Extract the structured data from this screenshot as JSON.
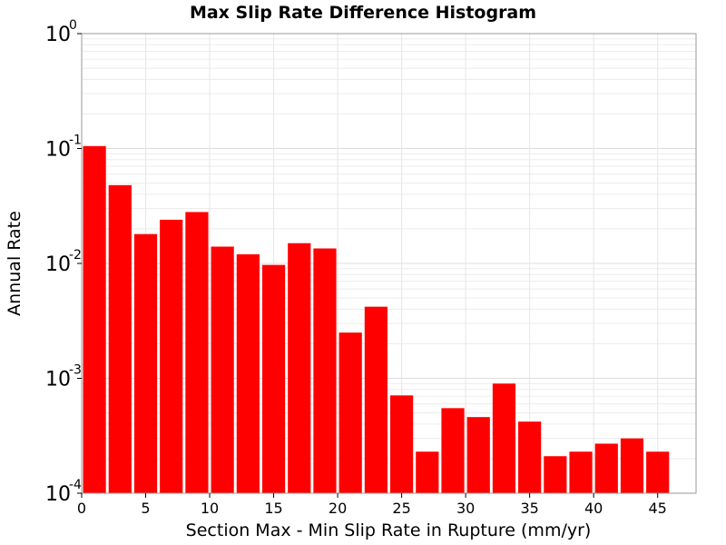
{
  "chart_data": {
    "type": "bar",
    "title": "Max Slip Rate Difference Histogram",
    "xlabel": "Section Max - Min Slip Rate in Rupture (mm/yr)",
    "ylabel": "Annual Rate",
    "xlim": [
      0,
      48
    ],
    "ylim": [
      0.0001,
      1
    ],
    "y_scale": "log",
    "grid": true,
    "legend": "none",
    "bar_color": "#ff0000",
    "bin_width": 2,
    "x_ticks": [
      "0",
      "5",
      "10",
      "15",
      "20",
      "25",
      "30",
      "35",
      "40",
      "45"
    ],
    "y_ticks": [
      {
        "base": "10",
        "exp": "0"
      },
      {
        "base": "10",
        "exp": "-1"
      },
      {
        "base": "10",
        "exp": "-2"
      },
      {
        "base": "10",
        "exp": "-3"
      },
      {
        "base": "10",
        "exp": "-4"
      }
    ],
    "x": [
      1,
      3,
      5,
      7,
      9,
      11,
      13,
      15,
      17,
      19,
      21,
      23,
      25,
      27,
      29,
      31,
      33,
      35,
      37,
      39,
      41,
      43,
      45
    ],
    "values": [
      0.105,
      0.048,
      0.018,
      0.024,
      0.028,
      0.014,
      0.012,
      0.0097,
      0.015,
      0.0135,
      0.0025,
      0.0042,
      0.00071,
      0.00023,
      0.00055,
      0.00046,
      0.0009,
      0.00042,
      0.00021,
      0.00023,
      0.00027,
      0.0003,
      0.00023
    ]
  }
}
